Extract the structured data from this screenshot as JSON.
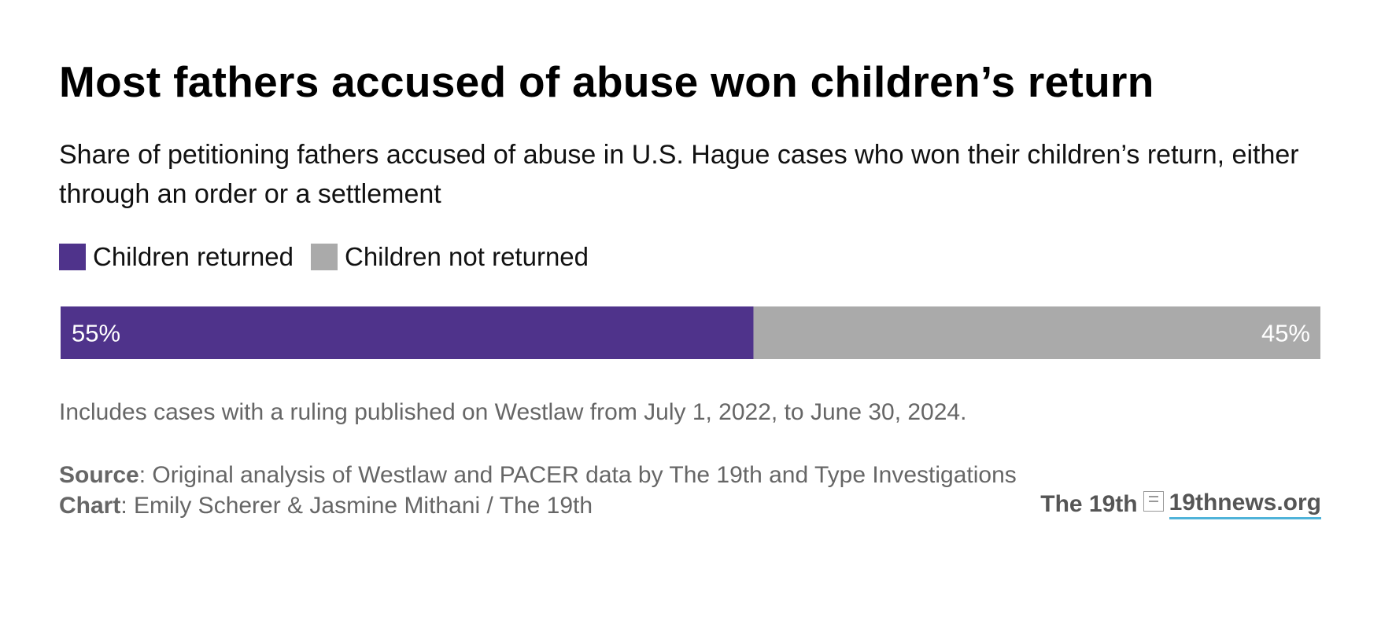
{
  "header": {
    "title": "Most fathers accused of abuse won children’s return",
    "subtitle": "Share of petitioning fathers accused of abuse in U.S. Hague cases who won their children’s return, either through an order or a settlement"
  },
  "legend": {
    "items": [
      {
        "label": "Children returned",
        "color": "#4f338b"
      },
      {
        "label": "Children not returned",
        "color": "#aaaaaa"
      }
    ]
  },
  "chart_data": {
    "type": "bar",
    "orientation": "horizontal-stacked",
    "categories": [
      ""
    ],
    "series": [
      {
        "name": "Children returned",
        "values": [
          55
        ],
        "label": "55%",
        "color": "#4f338b"
      },
      {
        "name": "Children not returned",
        "values": [
          45
        ],
        "label": "45%",
        "color": "#aaaaaa"
      }
    ],
    "xlim": [
      0,
      100
    ],
    "grid": false,
    "legend_position": "top-left"
  },
  "footer": {
    "note": "Includes cases with a ruling published on Westlaw from July 1, 2022, to June 30, 2024.",
    "source_label": "Source",
    "source_text": ": Original analysis of Westlaw and PACER data by The 19th and Type Investigations",
    "chart_label": "Chart",
    "chart_text": ": Emily Scherer & Jasmine Mithani / The 19th",
    "brand_name": "The 19th",
    "brand_link": "19thnews.org",
    "brand_icon": "the-19th-logo-icon"
  }
}
